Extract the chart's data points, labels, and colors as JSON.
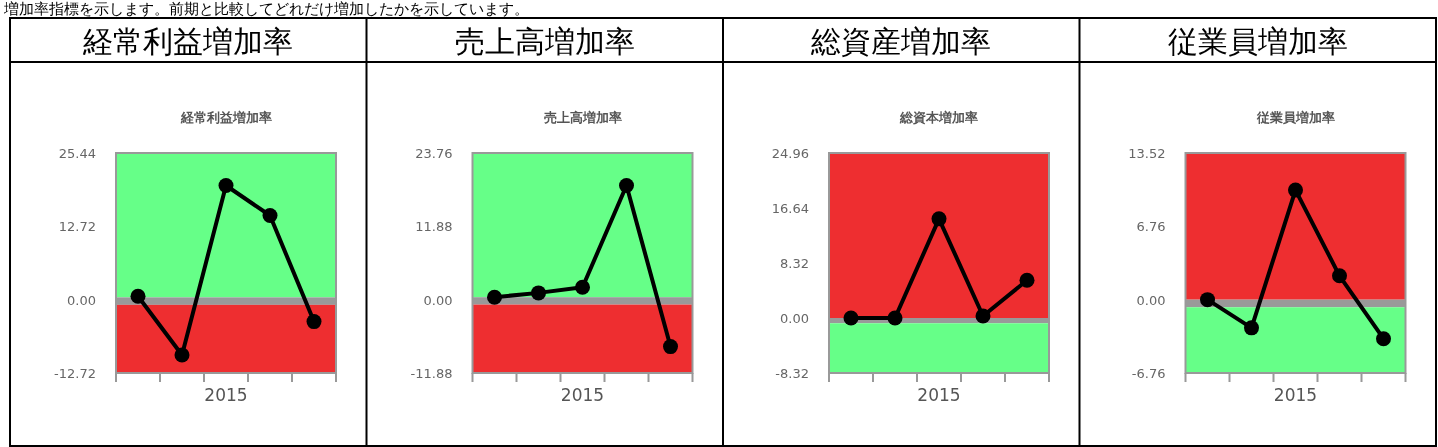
{
  "chart_data": [
    {
      "type": "line",
      "title": "経常利益増加率",
      "subtitle": "経常利益増加率",
      "annotations": [
        "増加率指標を示します。前期と比較してどれだけ増加したかを示しています。"
      ],
      "categories": [
        null,
        null,
        "2015",
        null,
        null
      ],
      "ylim": [
        -12.72,
        25.44
      ],
      "yticks": [
        {
          "value": -12.72,
          "label": "-12.72"
        },
        {
          "value": 0,
          "label": "0.00"
        },
        {
          "value": 12.72,
          "label": "12.72"
        },
        {
          "value": 25.44,
          "label": "25.44"
        }
      ],
      "marker": "circle",
      "grid": false,
      "bands": [
        {
          "axis": "y",
          "from": 0.4,
          "to": 25.44,
          "color": "#66ff88"
        },
        {
          "axis": "y",
          "from": -0.9,
          "to": 0.4,
          "color": "#999999"
        },
        {
          "axis": "y",
          "from": -12.72,
          "to": -0.9,
          "color": "#ee2e30"
        }
      ],
      "series": [
        {
          "color": "#000000",
          "values": [
            0.6,
            -9.6,
            19.8,
            14.6,
            -3.8
          ]
        }
      ]
    },
    {
      "type": "line",
      "title": "売上高増加率",
      "subtitle": "売上高増加率",
      "categories": [
        null,
        null,
        "2015",
        null,
        null
      ],
      "ylim": [
        -11.88,
        23.76
      ],
      "yticks": [
        {
          "value": -11.88,
          "label": "-11.88"
        },
        {
          "value": 0,
          "label": "0.00"
        },
        {
          "value": 11.88,
          "label": "11.88"
        },
        {
          "value": 23.76,
          "label": "23.76"
        }
      ],
      "marker": "circle",
      "grid": false,
      "bands": [
        {
          "axis": "y",
          "from": 0.4,
          "to": 23.76,
          "color": "#66ff88"
        },
        {
          "axis": "y",
          "from": -0.8,
          "to": 0.4,
          "color": "#999999"
        },
        {
          "axis": "y",
          "from": -11.88,
          "to": -0.8,
          "color": "#ee2e30"
        }
      ],
      "series": [
        {
          "color": "#000000",
          "values": [
            0.4,
            1.1,
            2.0,
            18.5,
            -7.6
          ]
        }
      ]
    },
    {
      "type": "line",
      "title": "総資産増加率",
      "subtitle": "総資本増加率",
      "categories": [
        null,
        null,
        "2015",
        null,
        null
      ],
      "ylim": [
        -8.32,
        24.96
      ],
      "yticks": [
        {
          "value": -8.32,
          "label": "-8.32"
        },
        {
          "value": 0,
          "label": "0.00"
        },
        {
          "value": 8.32,
          "label": "8.32"
        },
        {
          "value": 16.64,
          "label": "16.64"
        },
        {
          "value": 24.96,
          "label": "24.96"
        }
      ],
      "marker": "circle",
      "grid": false,
      "bands": [
        {
          "axis": "y",
          "from": 0,
          "to": 24.96,
          "color": "#ee2e30"
        },
        {
          "axis": "y",
          "from": -0.8,
          "to": 0,
          "color": "#999999"
        },
        {
          "axis": "y",
          "from": -8.32,
          "to": -0.8,
          "color": "#66ff88"
        }
      ],
      "series": [
        {
          "color": "#000000",
          "values": [
            0,
            0,
            15.0,
            0.3,
            5.7
          ]
        }
      ]
    },
    {
      "type": "line",
      "title": "従業員増加率",
      "subtitle": "従業員増加率",
      "categories": [
        null,
        null,
        "2015",
        null,
        null
      ],
      "ylim": [
        -6.76,
        13.52
      ],
      "yticks": [
        {
          "value": -6.76,
          "label": "-6.76"
        },
        {
          "value": 0,
          "label": "0.00"
        },
        {
          "value": 6.76,
          "label": "6.76"
        },
        {
          "value": 13.52,
          "label": "13.52"
        }
      ],
      "marker": "circle",
      "grid": false,
      "bands": [
        {
          "axis": "y",
          "from": 0,
          "to": 13.52,
          "color": "#ee2e30"
        },
        {
          "axis": "y",
          "from": -0.7,
          "to": 0,
          "color": "#999999"
        },
        {
          "axis": "y",
          "from": -6.76,
          "to": -0.7,
          "color": "#66ff88"
        }
      ],
      "series": [
        {
          "color": "#000000",
          "values": [
            0,
            -2.6,
            10.1,
            2.2,
            -3.6
          ]
        }
      ]
    }
  ]
}
